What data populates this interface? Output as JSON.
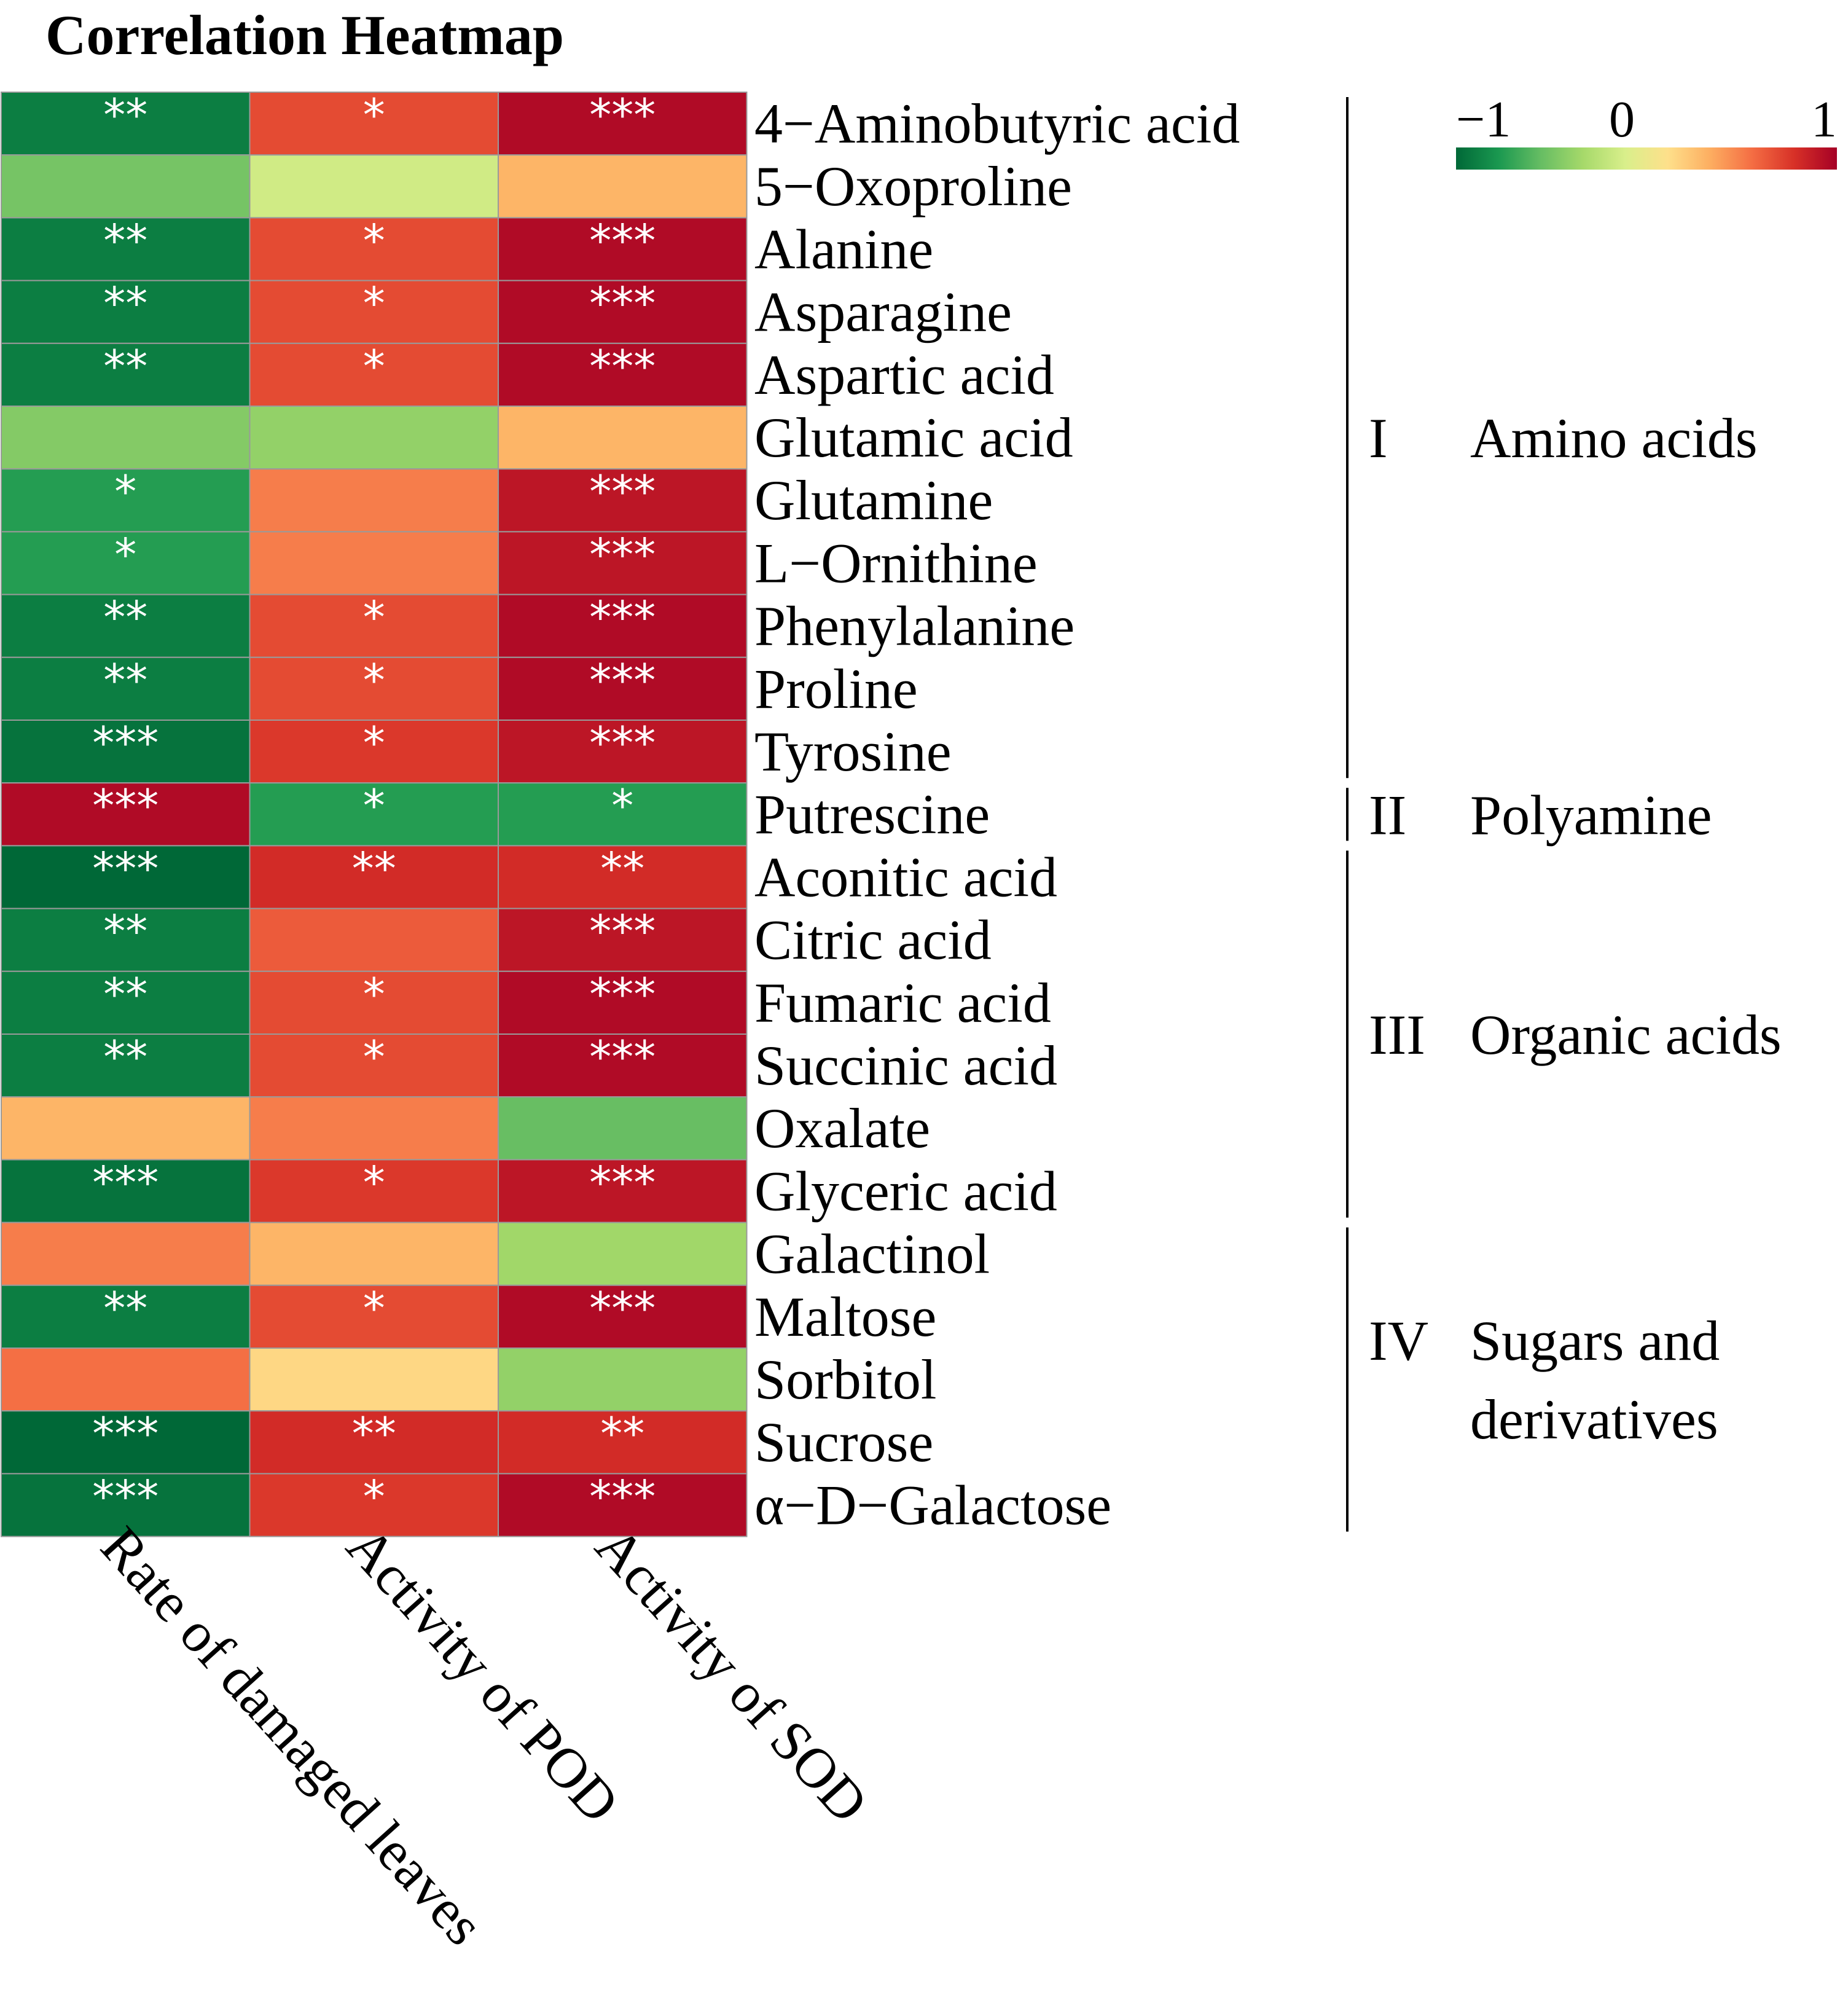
{
  "chart_data": {
    "type": "heatmap",
    "title": "Correlation Heatmap",
    "columns": [
      "Rate of damaged leaves",
      "Activity of POD",
      "Activity of SOD"
    ],
    "rows": [
      "4−Aminobutyric acid",
      "5−Oxoproline",
      "Alanine",
      "Asparagine",
      "Aspartic acid",
      "Glutamic acid",
      "Glutamine",
      "L−Ornithine",
      "Phenylalanine",
      "Proline",
      "Tyrosine",
      "Putrescine",
      "Aconitic acid",
      "Citric acid",
      "Fumaric acid",
      "Succinic acid",
      "Oxalate",
      "Glyceric acid",
      "Galactinol",
      "Maltose",
      "Sorbitol",
      "Sucrose",
      "α−D−Galactose"
    ],
    "values": [
      [
        -0.9,
        0.68,
        0.95
      ],
      [
        -0.5,
        -0.15,
        0.3
      ],
      [
        -0.9,
        0.68,
        0.95
      ],
      [
        -0.9,
        0.68,
        0.95
      ],
      [
        -0.9,
        0.68,
        0.95
      ],
      [
        -0.45,
        -0.4,
        0.3
      ],
      [
        -0.75,
        0.5,
        0.9
      ],
      [
        -0.75,
        0.5,
        0.9
      ],
      [
        -0.9,
        0.68,
        0.95
      ],
      [
        -0.9,
        0.68,
        0.95
      ],
      [
        -0.95,
        0.75,
        0.9
      ],
      [
        0.95,
        -0.75,
        -0.75
      ],
      [
        -1.0,
        0.8,
        0.8
      ],
      [
        -0.9,
        0.62,
        0.9
      ],
      [
        -0.9,
        0.68,
        0.95
      ],
      [
        -0.9,
        0.68,
        0.95
      ],
      [
        0.3,
        0.5,
        -0.55
      ],
      [
        -0.95,
        0.75,
        0.9
      ],
      [
        0.5,
        0.3,
        -0.35
      ],
      [
        -0.9,
        0.68,
        0.95
      ],
      [
        0.55,
        0.15,
        -0.4
      ],
      [
        -1.0,
        0.8,
        0.8
      ],
      [
        -0.95,
        0.75,
        0.95
      ]
    ],
    "significance": [
      [
        "**",
        "*",
        "***"
      ],
      [
        "",
        "",
        ""
      ],
      [
        "**",
        "*",
        "***"
      ],
      [
        "**",
        "*",
        "***"
      ],
      [
        "**",
        "*",
        "***"
      ],
      [
        "",
        "",
        ""
      ],
      [
        "*",
        "",
        "***"
      ],
      [
        "*",
        "",
        "***"
      ],
      [
        "**",
        "*",
        "***"
      ],
      [
        "**",
        "*",
        "***"
      ],
      [
        "***",
        "*",
        "***"
      ],
      [
        "***",
        "*",
        "*"
      ],
      [
        "***",
        "**",
        "**"
      ],
      [
        "**",
        "",
        "***"
      ],
      [
        "**",
        "*",
        "***"
      ],
      [
        "**",
        "*",
        "***"
      ],
      [
        "",
        "",
        ""
      ],
      [
        "***",
        "*",
        "***"
      ],
      [
        "",
        "",
        ""
      ],
      [
        "**",
        "*",
        "***"
      ],
      [
        "",
        "",
        ""
      ],
      [
        "***",
        "**",
        "**"
      ],
      [
        "***",
        "*",
        "***"
      ]
    ],
    "groups": [
      {
        "numeral": "I",
        "name_lines": [
          "Amino acids"
        ],
        "first_row": 0,
        "last_row": 10
      },
      {
        "numeral": "II",
        "name_lines": [
          "Polyamine"
        ],
        "first_row": 11,
        "last_row": 11
      },
      {
        "numeral": "III",
        "name_lines": [
          "Organic acids"
        ],
        "first_row": 12,
        "last_row": 17
      },
      {
        "numeral": "IV",
        "name_lines": [
          "Sugars and",
          "derivatives"
        ],
        "first_row": 18,
        "last_row": 22
      }
    ],
    "legend": {
      "range": [
        -1,
        1
      ],
      "tick_labels": [
        "−1",
        "0",
        "1"
      ],
      "tick_values": [
        -1,
        0,
        1
      ],
      "colors": [
        "#006837",
        "#1a9850",
        "#66bd63",
        "#a6d96a",
        "#d9ef8b",
        "#fee08b",
        "#fdae61",
        "#f46d43",
        "#d73027",
        "#a50026"
      ]
    }
  }
}
